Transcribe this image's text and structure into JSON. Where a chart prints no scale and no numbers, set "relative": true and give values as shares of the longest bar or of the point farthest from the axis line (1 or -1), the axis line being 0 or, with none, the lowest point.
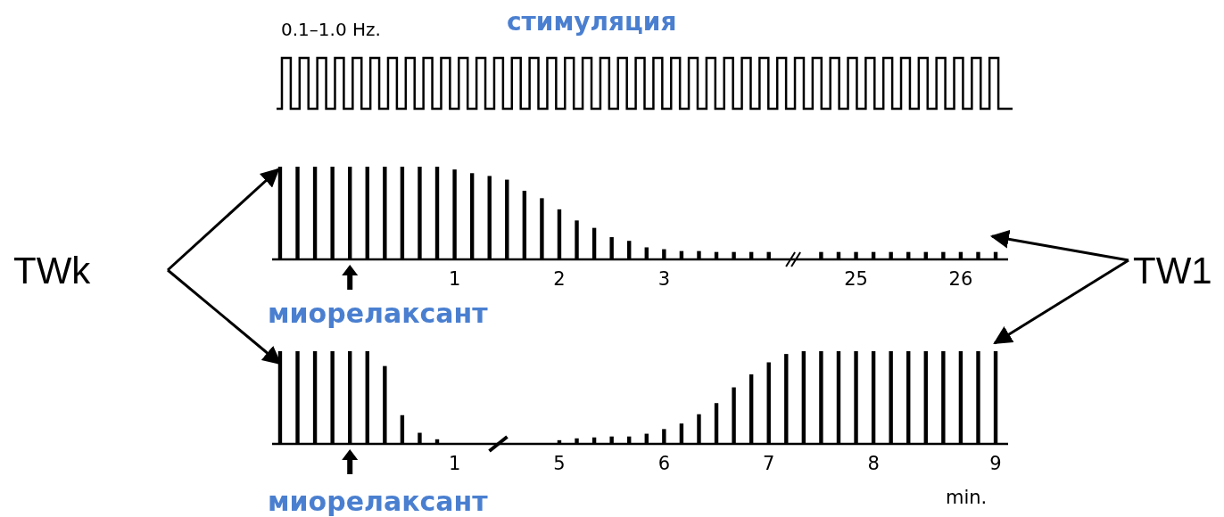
{
  "chart_data": [
    {
      "type": "bar",
      "relative": true,
      "color": "#000000",
      "annotations": [
        "0.1–1.0 Hz.",
        "стимуляция",
        "TWk",
        "TW1",
        "миорелаксант"
      ],
      "categories": [
        null,
        null,
        null,
        null,
        null,
        null,
        null,
        null,
        null,
        null,
        "1",
        null,
        null,
        null,
        null,
        null,
        "2",
        null,
        null,
        null,
        null,
        null,
        "3",
        null,
        null,
        null,
        null,
        null,
        null,
        null,
        null,
        null,
        null,
        "25",
        null,
        null,
        null,
        null,
        null,
        "26",
        null,
        null
      ],
      "values": [
        1,
        1,
        1,
        1,
        1,
        1,
        1,
        1,
        1,
        1,
        0.97,
        0.93,
        0.9,
        0.86,
        0.74,
        0.66,
        0.54,
        0.42,
        0.34,
        0.24,
        0.2,
        0.13,
        0.11,
        0.09,
        0.09,
        0.08,
        0.08,
        0.08,
        0.08,
        null,
        null,
        0.08,
        0.08,
        0.08,
        0.08,
        0.08,
        0.08,
        0.08,
        0.08,
        0.08,
        0.08,
        0.08
      ]
    },
    {
      "type": "bar",
      "relative": true,
      "color": "#000000",
      "xlabel": "min.",
      "annotations": [
        "миорелаксант"
      ],
      "categories": [
        null,
        null,
        null,
        null,
        null,
        null,
        null,
        null,
        null,
        null,
        "1",
        null,
        null,
        null,
        null,
        null,
        "5",
        null,
        null,
        null,
        null,
        null,
        "6",
        null,
        null,
        null,
        null,
        null,
        "7",
        null,
        null,
        null,
        null,
        null,
        "8",
        null,
        null,
        null,
        null,
        null,
        null,
        "9"
      ],
      "values": [
        1,
        1,
        1,
        1,
        1,
        1,
        0.84,
        0.31,
        0.12,
        0.05,
        null,
        null,
        null,
        null,
        null,
        null,
        0.04,
        0.06,
        0.07,
        0.08,
        0.08,
        0.11,
        0.16,
        0.22,
        0.32,
        0.44,
        0.61,
        0.75,
        0.88,
        0.97,
        1,
        1,
        1,
        1,
        1,
        1,
        1,
        1,
        1,
        1,
        1,
        1
      ]
    }
  ]
}
